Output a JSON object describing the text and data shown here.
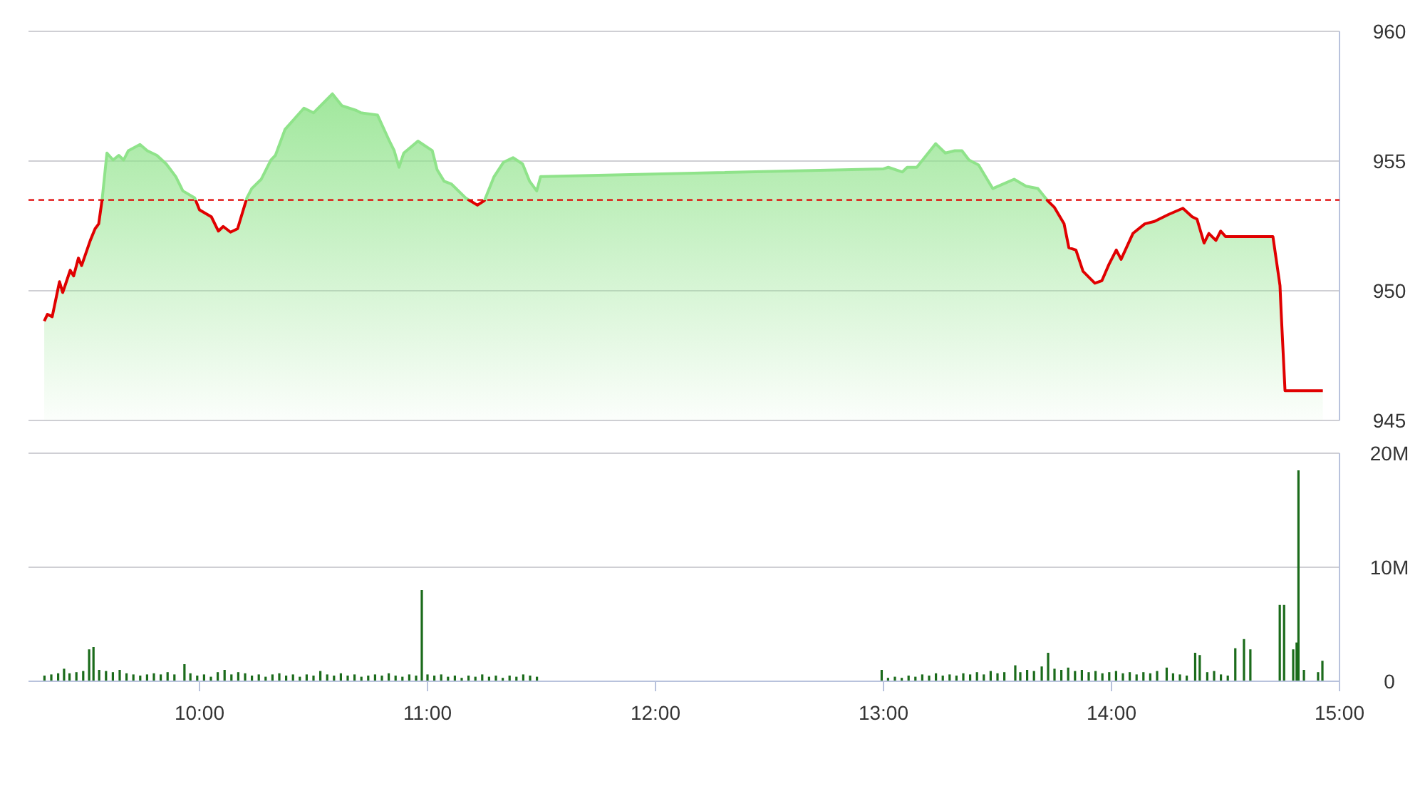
{
  "chart_data": [
    {
      "type": "area",
      "xlim": [
        9.25,
        15
      ],
      "ylim": [
        945,
        960
      ],
      "yticks": [
        945,
        950,
        955,
        960
      ],
      "grid": "y",
      "tick_labels": "y",
      "ref_lines": [
        {
          "axis": "y",
          "value": 953.5,
          "color": "#e00000",
          "line_style": "dashed"
        }
      ],
      "series": [
        {
          "color": "#8fe38a",
          "x": [
            9.319,
            9.333,
            9.354,
            9.386,
            9.4,
            9.433,
            9.448,
            9.469,
            9.483,
            9.521,
            9.542,
            9.558,
            9.573,
            9.594,
            9.621,
            9.646,
            9.667,
            9.688,
            9.739,
            9.771,
            9.813,
            9.854,
            9.896,
            9.927,
            9.979,
            10.0,
            10.052,
            10.083,
            10.104,
            10.136,
            10.167,
            10.208,
            10.229,
            10.271,
            10.313,
            10.333,
            10.375,
            10.458,
            10.5,
            10.583,
            10.625,
            10.688,
            10.708,
            10.781,
            10.833,
            10.854,
            10.875,
            10.896,
            10.958,
            11.021,
            11.042,
            11.073,
            11.104,
            11.167,
            11.219,
            11.25,
            11.292,
            11.333,
            11.375,
            11.417,
            11.448,
            11.479,
            11.496,
            13.0,
            13.021,
            13.083,
            13.104,
            13.146,
            13.229,
            13.271,
            13.313,
            13.344,
            13.375,
            13.417,
            13.479,
            13.573,
            13.625,
            13.677,
            13.719,
            13.75,
            13.792,
            13.813,
            13.844,
            13.875,
            13.927,
            13.958,
            13.989,
            14.021,
            14.042,
            14.094,
            14.146,
            14.188,
            14.25,
            14.313,
            14.354,
            14.375,
            14.406,
            14.427,
            14.458,
            14.479,
            14.5,
            14.708,
            14.739,
            14.744,
            14.761,
            14.927
          ],
          "values": [
            948.83,
            949.09,
            949.0,
            950.35,
            949.93,
            950.79,
            950.57,
            951.26,
            950.97,
            951.94,
            952.39,
            952.58,
            953.52,
            955.31,
            955.04,
            955.22,
            955.04,
            955.4,
            955.64,
            955.4,
            955.22,
            954.89,
            954.4,
            953.85,
            953.58,
            953.12,
            952.85,
            952.3,
            952.48,
            952.26,
            952.39,
            953.58,
            953.94,
            954.3,
            955.04,
            955.22,
            956.22,
            957.04,
            956.86,
            957.59,
            957.13,
            956.95,
            956.86,
            956.77,
            955.77,
            955.4,
            954.76,
            955.31,
            955.77,
            955.4,
            954.67,
            954.22,
            954.12,
            953.58,
            953.3,
            953.48,
            954.4,
            954.95,
            955.13,
            954.89,
            954.22,
            953.85,
            954.4,
            954.7,
            954.76,
            954.58,
            954.76,
            954.76,
            955.67,
            955.31,
            955.4,
            955.4,
            955.04,
            954.85,
            953.94,
            954.3,
            954.03,
            953.94,
            953.48,
            953.21,
            952.58,
            951.66,
            951.57,
            950.75,
            950.29,
            950.39,
            951.02,
            951.57,
            951.21,
            952.21,
            952.58,
            952.67,
            952.94,
            953.18,
            952.85,
            952.76,
            951.84,
            952.21,
            951.94,
            952.3,
            952.09,
            952.09,
            950.2,
            949.2,
            946.15,
            946.15
          ]
        }
      ]
    },
    {
      "type": "bar",
      "xlim": [
        9.25,
        15
      ],
      "ylim": [
        0,
        20
      ],
      "grid": "y",
      "yticks": [
        {
          "value": 0,
          "label": "0"
        },
        {
          "value": 10,
          "label": "10M"
        },
        {
          "value": 20,
          "label": "20M"
        }
      ],
      "xticks": [
        {
          "value": 10,
          "label": "10:00"
        },
        {
          "value": 11,
          "label": "11:00"
        },
        {
          "value": 12,
          "label": "12:00"
        },
        {
          "value": 13,
          "label": "13:00"
        },
        {
          "value": 14,
          "label": "14:00"
        },
        {
          "value": 15,
          "label": "15:00"
        }
      ],
      "series": [
        {
          "color": "#1b6b1b",
          "x": [
            9.32,
            9.35,
            9.38,
            9.406,
            9.43,
            9.46,
            9.49,
            9.516,
            9.535,
            9.56,
            9.59,
            9.62,
            9.65,
            9.68,
            9.71,
            9.74,
            9.77,
            9.8,
            9.83,
            9.86,
            9.89,
            9.934,
            9.96,
            9.99,
            10.02,
            10.05,
            10.08,
            10.11,
            10.14,
            10.17,
            10.2,
            10.23,
            10.26,
            10.29,
            10.32,
            10.35,
            10.38,
            10.41,
            10.44,
            10.47,
            10.5,
            10.53,
            10.56,
            10.59,
            10.62,
            10.65,
            10.68,
            10.71,
            10.74,
            10.77,
            10.8,
            10.83,
            10.86,
            10.89,
            10.92,
            10.95,
            10.975,
            11.0,
            11.03,
            11.06,
            11.09,
            11.12,
            11.15,
            11.18,
            11.21,
            11.24,
            11.27,
            11.3,
            11.33,
            11.36,
            11.39,
            11.42,
            11.45,
            11.48,
            12.992,
            13.02,
            13.05,
            13.08,
            13.11,
            13.14,
            13.17,
            13.2,
            13.23,
            13.26,
            13.29,
            13.32,
            13.35,
            13.38,
            13.41,
            13.44,
            13.47,
            13.5,
            13.53,
            13.578,
            13.6,
            13.63,
            13.66,
            13.694,
            13.722,
            13.75,
            13.78,
            13.81,
            13.84,
            13.87,
            13.9,
            13.93,
            13.96,
            13.99,
            14.02,
            14.05,
            14.08,
            14.11,
            14.14,
            14.17,
            14.2,
            14.242,
            14.27,
            14.3,
            14.33,
            14.367,
            14.387,
            14.42,
            14.45,
            14.48,
            14.51,
            14.543,
            14.581,
            14.609,
            14.738,
            14.757,
            14.797,
            14.812,
            14.82,
            14.844,
            14.906,
            14.925
          ],
          "values": [
            0.5,
            0.6,
            0.7,
            1.1,
            0.7,
            0.8,
            0.9,
            2.8,
            3.0,
            1.0,
            0.9,
            0.8,
            1.0,
            0.7,
            0.6,
            0.5,
            0.6,
            0.7,
            0.6,
            0.8,
            0.6,
            1.5,
            0.7,
            0.5,
            0.6,
            0.4,
            0.8,
            1.0,
            0.6,
            0.8,
            0.7,
            0.5,
            0.6,
            0.4,
            0.6,
            0.7,
            0.5,
            0.6,
            0.4,
            0.6,
            0.5,
            0.9,
            0.6,
            0.5,
            0.7,
            0.5,
            0.6,
            0.4,
            0.5,
            0.6,
            0.5,
            0.7,
            0.5,
            0.4,
            0.6,
            0.5,
            8.0,
            0.6,
            0.5,
            0.6,
            0.4,
            0.5,
            0.3,
            0.5,
            0.4,
            0.6,
            0.4,
            0.5,
            0.3,
            0.5,
            0.4,
            0.6,
            0.5,
            0.4,
            1.0,
            0.3,
            0.4,
            0.3,
            0.5,
            0.4,
            0.6,
            0.5,
            0.7,
            0.5,
            0.6,
            0.5,
            0.7,
            0.6,
            0.8,
            0.6,
            0.9,
            0.7,
            0.8,
            1.4,
            0.8,
            1.0,
            0.9,
            1.3,
            2.5,
            1.1,
            1.0,
            1.2,
            0.9,
            1.0,
            0.8,
            0.9,
            0.7,
            0.8,
            0.9,
            0.7,
            0.8,
            0.6,
            0.8,
            0.7,
            0.9,
            1.2,
            0.7,
            0.6,
            0.5,
            2.5,
            2.3,
            0.8,
            0.9,
            0.6,
            0.5,
            2.9,
            3.7,
            2.8,
            6.7,
            6.7,
            2.8,
            3.4,
            18.5,
            1.0,
            0.8,
            1.8
          ]
        }
      ]
    }
  ]
}
